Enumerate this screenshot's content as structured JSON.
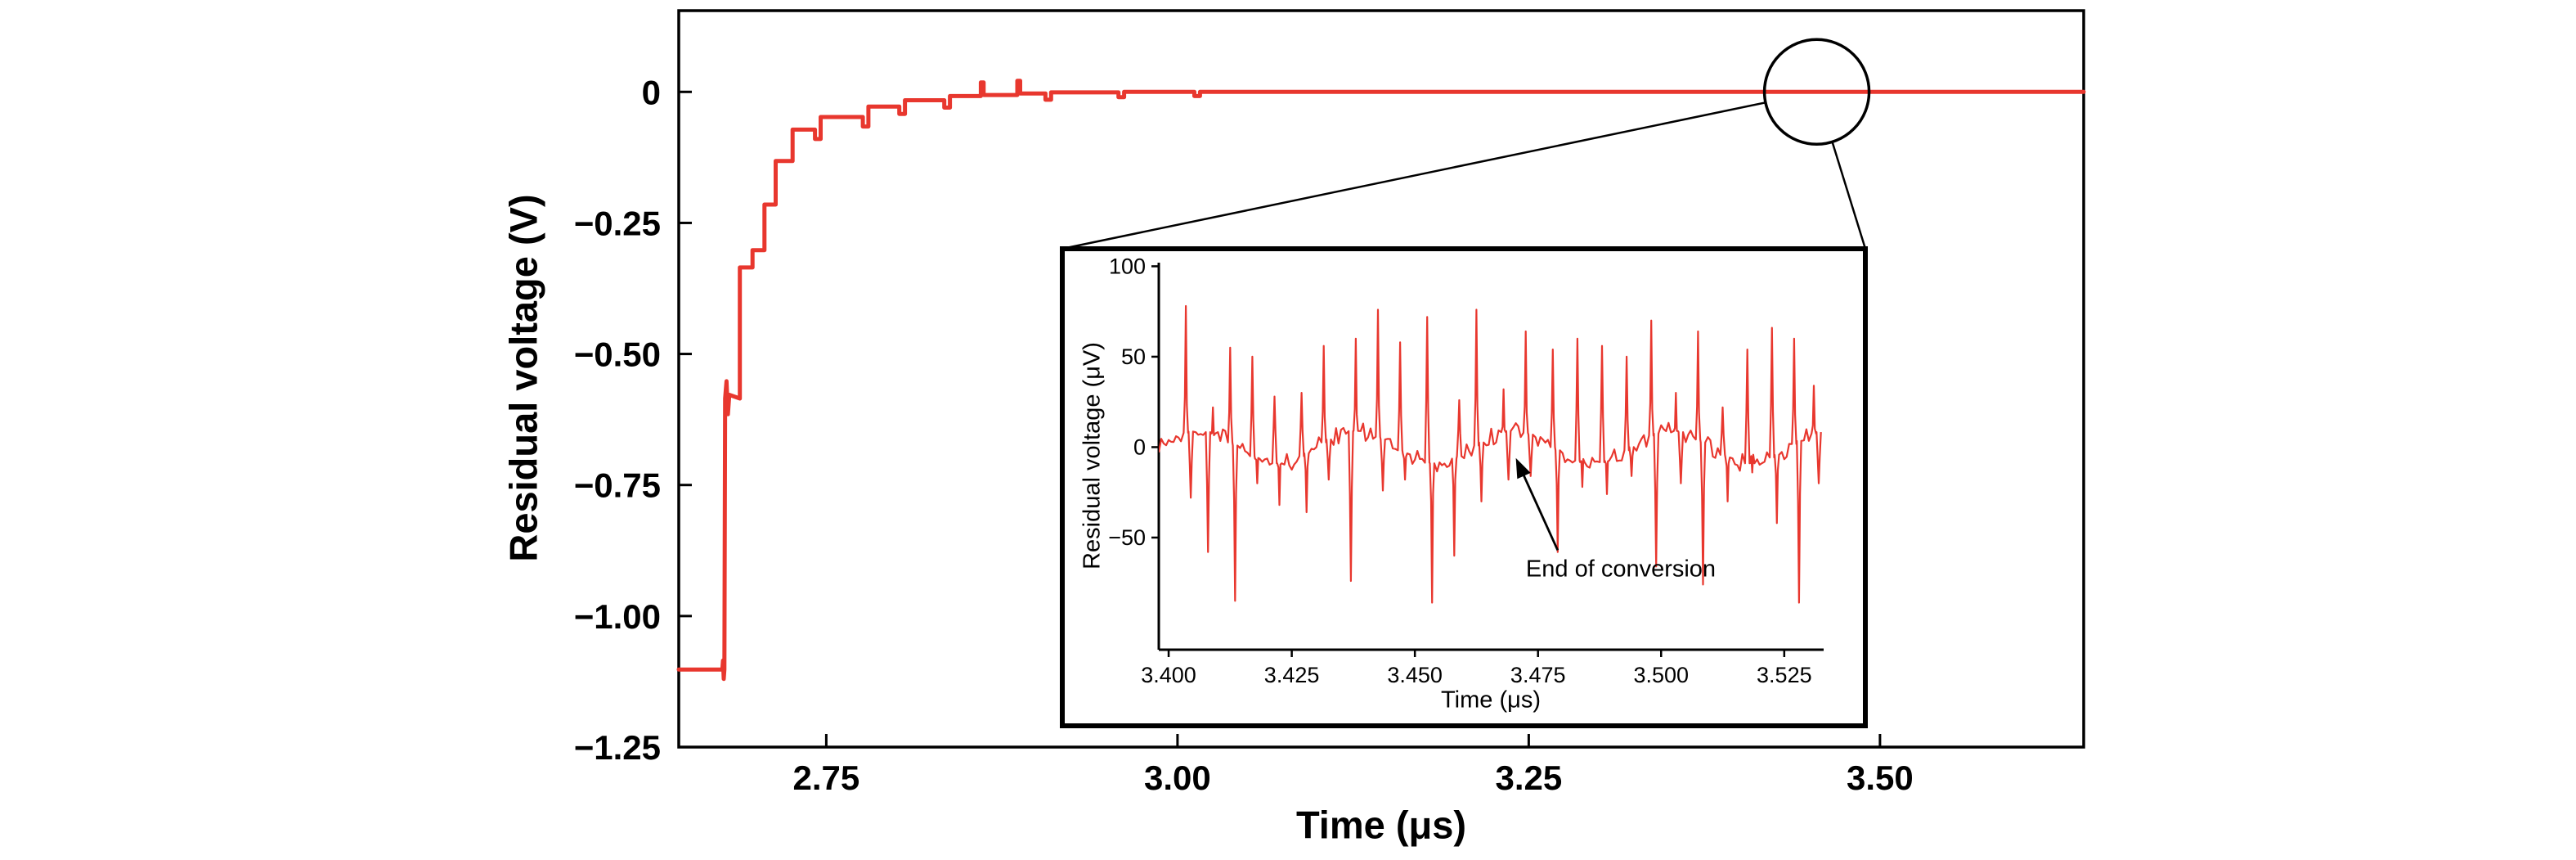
{
  "figure": {
    "background": "#ffffff",
    "axis_color": "#000000",
    "line_color": "#e8372e"
  },
  "chart_data": [
    {
      "id": "main",
      "type": "line",
      "title": "",
      "xlabel": "Time (μs)",
      "ylabel": "Residual voltage (V)",
      "xlim": [
        2.645,
        3.645
      ],
      "ylim": [
        -1.25,
        0.155
      ],
      "grid": false,
      "legend": "none",
      "xticks": [
        2.75,
        3.0,
        3.25,
        3.5
      ],
      "xtick_labels": [
        "2.75",
        "3.00",
        "3.25",
        "3.50"
      ],
      "yticks": [
        0,
        -0.25,
        -0.5,
        -0.75,
        -1.0,
        -1.25
      ],
      "ytick_labels": [
        "0",
        "−0.25",
        "−0.50",
        "−0.75",
        "−1.00",
        "−1.25"
      ],
      "series": [
        {
          "name": "residual-voltage-settling",
          "color": "#e8372e",
          "points": [
            [
              2.645,
              -1.102
            ],
            [
              2.676,
              -1.102
            ],
            [
              2.6765,
              -1.085
            ],
            [
              2.677,
              -1.12
            ],
            [
              2.6775,
              -1.102
            ],
            [
              2.678,
              -0.585
            ],
            [
              2.679,
              -0.552
            ],
            [
              2.68,
              -0.615
            ],
            [
              2.681,
              -0.578
            ],
            [
              2.6885,
              -0.585
            ],
            [
              2.6885,
              -0.335
            ],
            [
              2.6975,
              -0.335
            ],
            [
              2.6975,
              -0.302
            ],
            [
              2.706,
              -0.302
            ],
            [
              2.706,
              -0.215
            ],
            [
              2.714,
              -0.215
            ],
            [
              2.714,
              -0.132
            ],
            [
              2.726,
              -0.132
            ],
            [
              2.726,
              -0.072
            ],
            [
              2.742,
              -0.072
            ],
            [
              2.742,
              -0.09
            ],
            [
              2.746,
              -0.09
            ],
            [
              2.746,
              -0.048
            ],
            [
              2.776,
              -0.048
            ],
            [
              2.776,
              -0.066
            ],
            [
              2.78,
              -0.066
            ],
            [
              2.78,
              -0.028
            ],
            [
              2.802,
              -0.028
            ],
            [
              2.802,
              -0.042
            ],
            [
              2.806,
              -0.042
            ],
            [
              2.806,
              -0.016
            ],
            [
              2.834,
              -0.016
            ],
            [
              2.834,
              -0.03
            ],
            [
              2.838,
              -0.03
            ],
            [
              2.838,
              -0.008
            ],
            [
              2.86,
              -0.008
            ],
            [
              2.86,
              0.018
            ],
            [
              2.862,
              0.018
            ],
            [
              2.862,
              -0.006
            ],
            [
              2.886,
              -0.006
            ],
            [
              2.886,
              0.021
            ],
            [
              2.888,
              0.021
            ],
            [
              2.888,
              -0.003
            ],
            [
              2.906,
              -0.003
            ],
            [
              2.906,
              -0.015
            ],
            [
              2.91,
              -0.015
            ],
            [
              2.91,
              -0.001
            ],
            [
              2.958,
              -0.001
            ],
            [
              2.958,
              -0.01
            ],
            [
              2.962,
              -0.01
            ],
            [
              2.962,
              0.0
            ],
            [
              3.012,
              0.0
            ],
            [
              3.012,
              -0.008
            ],
            [
              3.016,
              -0.008
            ],
            [
              3.016,
              0.0
            ],
            [
              3.645,
              0.0
            ]
          ]
        }
      ],
      "annotations": {
        "zoom_circle": {
          "t": 3.455,
          "v": 0.0,
          "radius_px": 64
        }
      }
    },
    {
      "id": "inset",
      "type": "line",
      "title": "",
      "xlabel": "Time (μs)",
      "ylabel": "Residual voltage (μV)",
      "xlim": [
        3.398,
        3.533
      ],
      "ylim": [
        -112,
        102
      ],
      "grid": false,
      "legend": "none",
      "xticks": [
        3.4,
        3.425,
        3.45,
        3.475,
        3.5,
        3.525
      ],
      "xtick_labels": [
        "3.400",
        "3.425",
        "3.450",
        "3.475",
        "3.500",
        "3.525"
      ],
      "yticks": [
        100,
        50,
        0,
        -50
      ],
      "ytick_labels": [
        "100",
        "50",
        "0",
        "−50"
      ],
      "series_color": "#e8372e",
      "baseline": {
        "wander_uV": 9,
        "wander_period_us": 0.032,
        "noise_uV": 5
      },
      "spikes": [
        {
          "t": 3.4035,
          "peaks": [
            78,
            -28
          ]
        },
        {
          "t": 3.408,
          "peaks": [
            -58,
            22
          ]
        },
        {
          "t": 3.4125,
          "peaks": [
            55,
            -85
          ]
        },
        {
          "t": 3.417,
          "peaks": [
            50,
            -20
          ]
        },
        {
          "t": 3.4215,
          "peaks": [
            28,
            -32
          ]
        },
        {
          "t": 3.427,
          "peaks": [
            30,
            -36
          ]
        },
        {
          "t": 3.4315,
          "peaks": [
            56,
            -18
          ]
        },
        {
          "t": 3.437,
          "peaks": [
            -74,
            60
          ]
        },
        {
          "t": 3.4425,
          "peaks": [
            76,
            -24
          ]
        },
        {
          "t": 3.447,
          "peaks": [
            58,
            -18
          ]
        },
        {
          "t": 3.4525,
          "peaks": [
            72,
            -86
          ]
        },
        {
          "t": 3.458,
          "peaks": [
            -60,
            26
          ]
        },
        {
          "t": 3.4625,
          "peaks": [
            76,
            -30
          ]
        },
        {
          "t": 3.468,
          "peaks": [
            32,
            -18
          ]
        },
        {
          "t": 3.4725,
          "peaks": [
            64,
            -16
          ]
        },
        {
          "t": 3.478,
          "peaks": [
            54,
            -58
          ]
        },
        {
          "t": 3.483,
          "peaks": [
            60,
            -22
          ]
        },
        {
          "t": 3.488,
          "peaks": [
            56,
            -26
          ]
        },
        {
          "t": 3.493,
          "peaks": [
            50,
            -16
          ]
        },
        {
          "t": 3.498,
          "peaks": [
            70,
            -66
          ]
        },
        {
          "t": 3.503,
          "peaks": [
            30,
            -20
          ]
        },
        {
          "t": 3.5075,
          "peaks": [
            64,
            -76
          ]
        },
        {
          "t": 3.5125,
          "peaks": [
            22,
            -30
          ]
        },
        {
          "t": 3.5175,
          "peaks": [
            54,
            -14
          ]
        },
        {
          "t": 3.5225,
          "peaks": [
            66,
            -42
          ]
        },
        {
          "t": 3.527,
          "peaks": [
            60,
            -86
          ]
        },
        {
          "t": 3.531,
          "peaks": [
            34,
            -20
          ]
        }
      ],
      "annotation": {
        "text": "End of conversion",
        "arrow_tip": [
          3.4705,
          -6
        ],
        "arrow_tail": [
          3.479,
          -57
        ]
      }
    }
  ]
}
